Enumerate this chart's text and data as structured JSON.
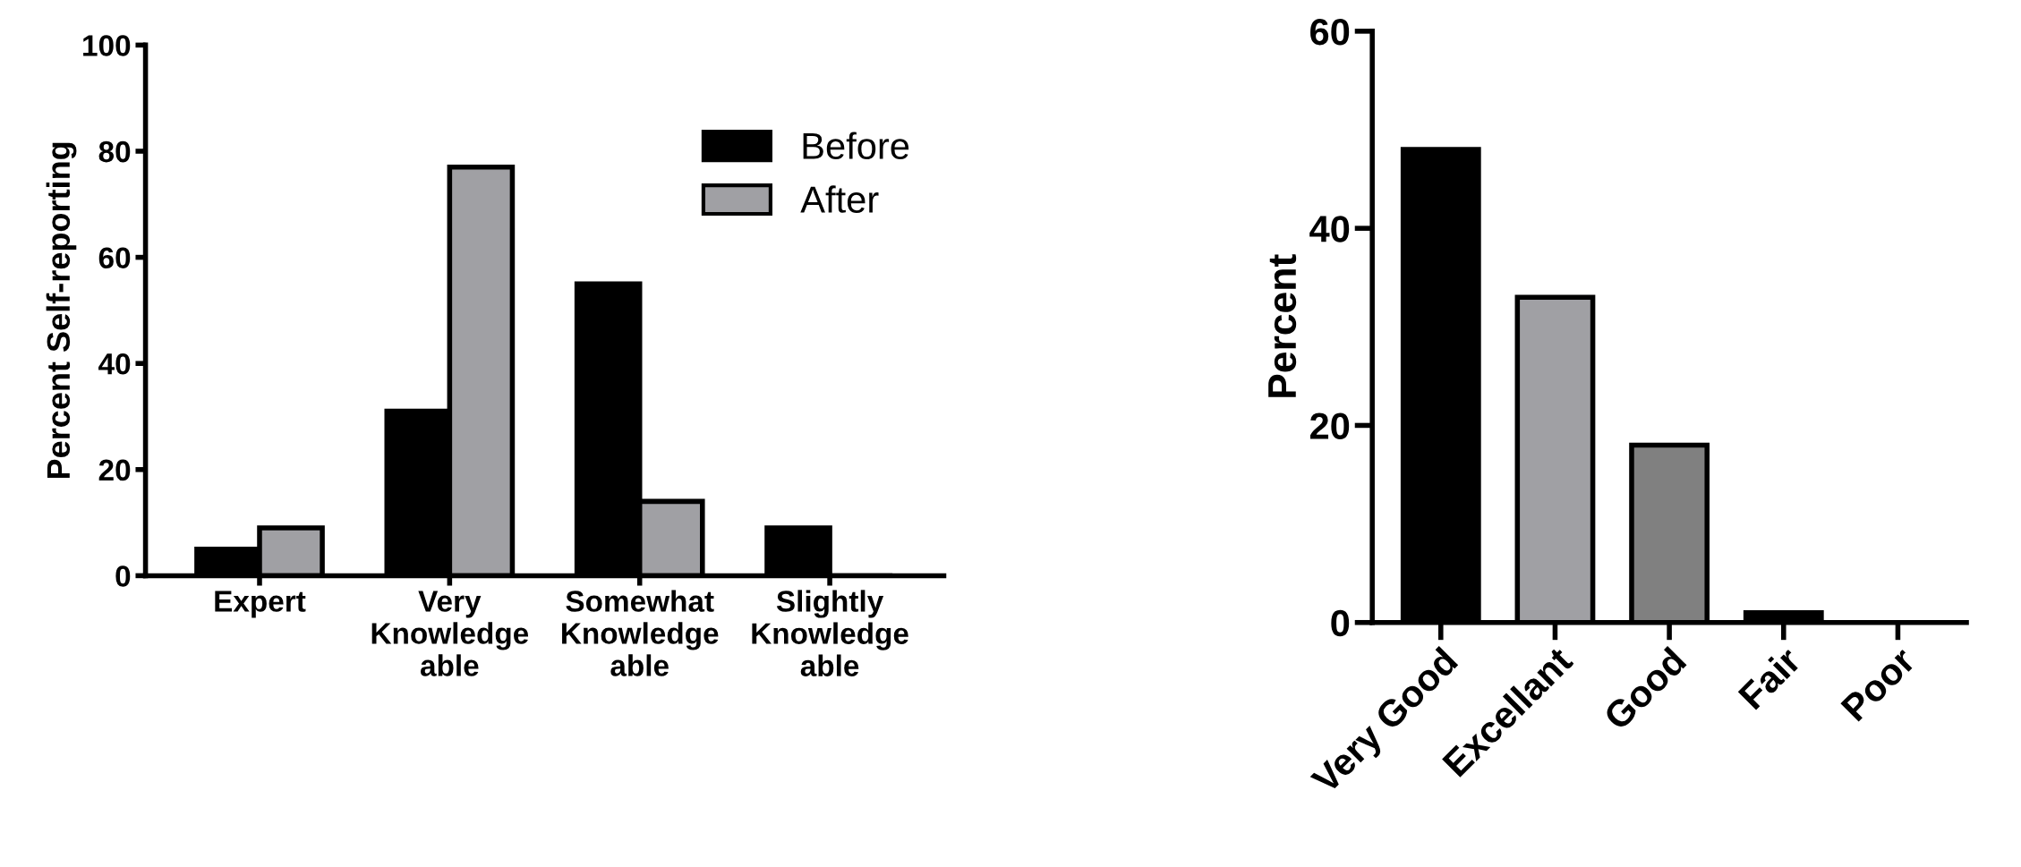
{
  "chart_data": [
    {
      "type": "bar",
      "ylabel": "Percent Self-reporting",
      "categories": [
        "Expert",
        "Very\nKnowledge\nable",
        "Somewhat\nKnowledge\nable",
        "Slightly\nKnowledge\nable"
      ],
      "series": [
        {
          "name": "Before",
          "color": "#000000",
          "values": [
            5,
            31,
            55,
            9
          ]
        },
        {
          "name": "After",
          "color": "#a0a0a4",
          "values": [
            9,
            77,
            14,
            0
          ]
        }
      ],
      "ylim": [
        0,
        100
      ],
      "yticks": [
        0,
        20,
        40,
        60,
        80,
        100
      ],
      "grid": false,
      "legend": "top right"
    },
    {
      "type": "bar",
      "ylabel": "Percent",
      "categories": [
        "Very Good",
        "Excellant",
        "Good",
        "Fair",
        "Poor"
      ],
      "values": [
        48,
        33,
        18,
        1,
        0
      ],
      "colors": [
        "#000000",
        "#a0a0a4",
        "#808080",
        "#000000",
        "#000000"
      ],
      "ylim": [
        0,
        60
      ],
      "yticks": [
        0,
        20,
        40,
        60
      ],
      "grid": false,
      "legend": false
    }
  ]
}
